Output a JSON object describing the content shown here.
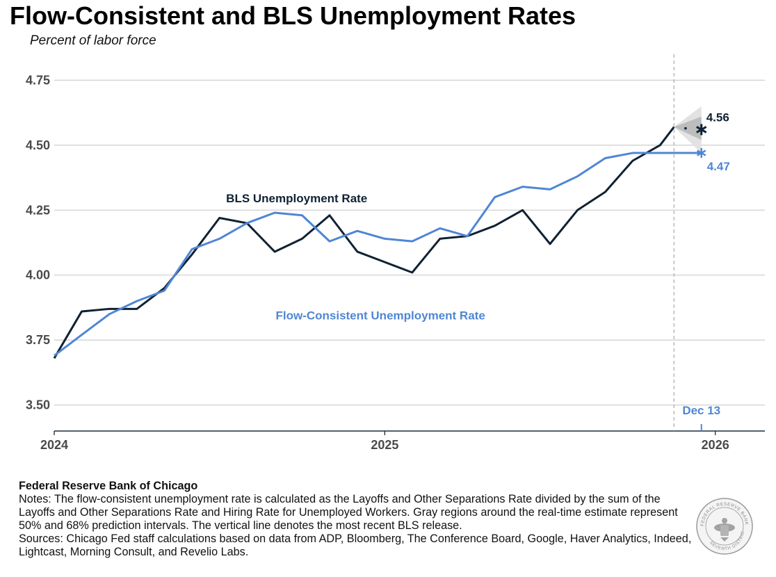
{
  "title": "Flow-Consistent and BLS Unemployment Rates",
  "subtitle": "Percent of labor force",
  "footer": {
    "org": "Federal Reserve Bank of Chicago",
    "notes": "Notes: The flow-consistent unemployment rate is calculated as the Layoffs and Other Separations Rate divided by the sum of the Layoffs and Other Separations Rate and Hiring Rate for Unemployed Workers. Gray regions around the real-time estimate represent 50% and 68% prediction intervals. The vertical line denotes the most recent BLS release.",
    "sources": "Sources: Chicago Fed staff calculations based on data from ADP, Bloomberg, The Conference Board, Google, Haver Analytics, Indeed, Lightcast, Morning Consult, and Revelio Labs."
  },
  "seal": {
    "ring_text_top": "FEDERAL RESERVE BANK OF CHICAGO",
    "ring_text_bottom": "SEVENTH DISTRICT"
  },
  "colors": {
    "bls": "#0f2233",
    "flow": "#4f86d4",
    "grid": "#d0d0d0",
    "band_outer": "#e2e2e2",
    "band_inner": "#bdbdbd"
  },
  "chart_data": {
    "type": "line",
    "title": "Flow-Consistent and BLS Unemployment Rates",
    "ylabel": "Percent of labor force",
    "ylim": [
      3.4,
      4.85
    ],
    "xlim": [
      2024.0,
      2026.15
    ],
    "yticks": [
      3.5,
      3.75,
      4.0,
      4.25,
      4.5,
      4.75
    ],
    "ytick_labels": [
      "3.50",
      "3.75",
      "4.00",
      "4.25",
      "4.50",
      "4.75"
    ],
    "xticks": [
      2024,
      2025,
      2026
    ],
    "xtick_labels": [
      "2024",
      "2025",
      "2026"
    ],
    "release_line_x": 2025.875,
    "release_label": "Dec 13",
    "release_label_x": 2025.958,
    "series": [
      {
        "name": "BLS Unemployment Rate",
        "x": [
          2024.0,
          2024.083,
          2024.167,
          2024.25,
          2024.333,
          2024.417,
          2024.5,
          2024.583,
          2024.667,
          2024.75,
          2024.833,
          2024.917,
          2025.0,
          2025.083,
          2025.167,
          2025.25,
          2025.333,
          2025.417,
          2025.5,
          2025.583,
          2025.667,
          2025.75,
          2025.833,
          2025.875
        ],
        "values": [
          3.68,
          3.86,
          3.87,
          3.87,
          3.95,
          4.08,
          4.22,
          4.2,
          4.09,
          4.14,
          4.23,
          4.09,
          4.05,
          4.01,
          4.14,
          4.15,
          4.19,
          4.25,
          4.12,
          4.25,
          4.32,
          4.44,
          4.5,
          4.57
        ]
      },
      {
        "name": "Flow-Consistent Unemployment Rate",
        "x": [
          2024.0,
          2024.083,
          2024.167,
          2024.25,
          2024.333,
          2024.417,
          2024.5,
          2024.583,
          2024.667,
          2024.75,
          2024.833,
          2024.917,
          2025.0,
          2025.083,
          2025.167,
          2025.25,
          2025.333,
          2025.417,
          2025.5,
          2025.583,
          2025.667,
          2025.75,
          2025.833,
          2025.958
        ],
        "values": [
          3.69,
          3.77,
          3.85,
          3.9,
          3.94,
          4.1,
          4.14,
          4.2,
          4.24,
          4.23,
          4.13,
          4.17,
          4.14,
          4.13,
          4.18,
          4.15,
          4.3,
          4.34,
          4.33,
          4.38,
          4.45,
          4.47,
          4.47,
          4.47
        ]
      }
    ],
    "bls_nowcast": {
      "x": 2025.958,
      "value": 4.56,
      "label": "4.56"
    },
    "flow_nowcast": {
      "x": 2025.958,
      "value": 4.47,
      "label": "4.47"
    },
    "bls_dot": {
      "x": 2025.91,
      "value": 4.565
    },
    "intervals": {
      "start": {
        "x": 2025.875,
        "value": 4.57
      },
      "end_x": 2025.958,
      "p50": [
        4.52,
        4.61
      ],
      "p68": [
        4.47,
        4.65
      ]
    },
    "series_label_positions": {
      "bls": {
        "x": 2024.52,
        "value": 4.28
      },
      "flow": {
        "x": 2024.67,
        "value": 3.83
      }
    }
  }
}
